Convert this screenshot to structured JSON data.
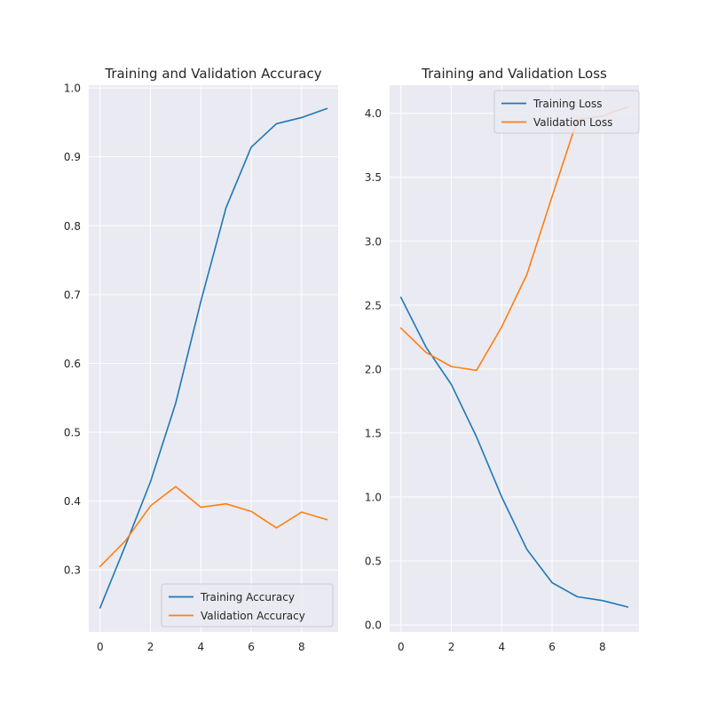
{
  "chart_data": [
    {
      "type": "line",
      "title": "Training and Validation Accuracy",
      "xlabel": "",
      "ylabel": "",
      "x": [
        0,
        1,
        2,
        3,
        4,
        5,
        6,
        7,
        8,
        9
      ],
      "xlim": [
        -0.45,
        9.45
      ],
      "ylim": [
        0.21,
        1.004
      ],
      "xticks": [
        0,
        2,
        4,
        6,
        8
      ],
      "xtick_labels": [
        "0",
        "2",
        "4",
        "6",
        "8"
      ],
      "yticks": [
        0.3,
        0.4,
        0.5,
        0.6,
        0.7,
        0.8,
        0.9,
        1.0
      ],
      "ytick_labels": [
        "0.3",
        "0.4",
        "0.5",
        "0.6",
        "0.7",
        "0.8",
        "0.9",
        "1.0"
      ],
      "grid": true,
      "legend": "lower right",
      "series": [
        {
          "name": "Training Accuracy",
          "color": "#1f77b4",
          "values": [
            0.245,
            0.335,
            0.428,
            0.542,
            0.69,
            0.826,
            0.914,
            0.948,
            0.957,
            0.97
          ]
        },
        {
          "name": "Validation Accuracy",
          "color": "#ff7f0e",
          "values": [
            0.305,
            0.342,
            0.393,
            0.421,
            0.391,
            0.396,
            0.385,
            0.361,
            0.384,
            0.373
          ]
        }
      ]
    },
    {
      "type": "line",
      "title": "Training and Validation Loss",
      "xlabel": "",
      "ylabel": "",
      "x": [
        0,
        1,
        2,
        3,
        4,
        5,
        6,
        7,
        8,
        9
      ],
      "xlim": [
        -0.45,
        9.45
      ],
      "ylim": [
        -0.055,
        4.22
      ],
      "xticks": [
        0,
        2,
        4,
        6,
        8
      ],
      "xtick_labels": [
        "0",
        "2",
        "4",
        "6",
        "8"
      ],
      "yticks": [
        0.0,
        0.5,
        1.0,
        1.5,
        2.0,
        2.5,
        3.0,
        3.5,
        4.0
      ],
      "ytick_labels": [
        "0.0",
        "0.5",
        "1.0",
        "1.5",
        "2.0",
        "2.5",
        "3.0",
        "3.5",
        "4.0"
      ],
      "grid": true,
      "legend": "upper right",
      "series": [
        {
          "name": "Training Loss",
          "color": "#1f77b4",
          "values": [
            2.56,
            2.17,
            1.88,
            1.47,
            1.0,
            0.59,
            0.33,
            0.22,
            0.19,
            0.14
          ]
        },
        {
          "name": "Validation Loss",
          "color": "#ff7f0e",
          "values": [
            2.32,
            2.13,
            2.02,
            1.99,
            2.33,
            2.74,
            3.35,
            3.95,
            3.98,
            4.05
          ]
        }
      ]
    }
  ]
}
